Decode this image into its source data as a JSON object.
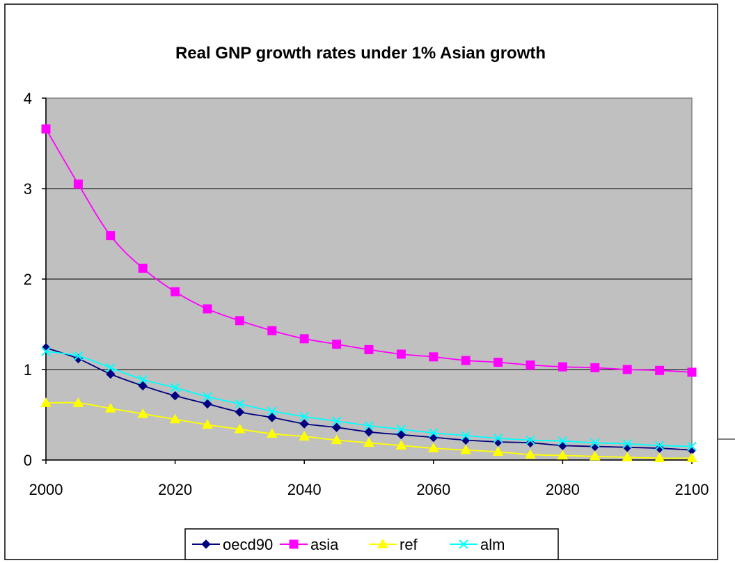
{
  "chart_data": {
    "type": "line",
    "title": "Real GNP growth rates under 1% Asian growth",
    "xlabel": "",
    "ylabel": "",
    "xlim": [
      2000,
      2100
    ],
    "ylim": [
      0,
      4
    ],
    "x_ticks": [
      2000,
      2020,
      2040,
      2060,
      2080,
      2100
    ],
    "y_ticks": [
      0,
      1,
      2,
      3,
      4
    ],
    "grid": "horizontal",
    "plot_background": "#c0c0c0",
    "legend_position": "bottom",
    "x": [
      2000,
      2005,
      2010,
      2015,
      2020,
      2025,
      2030,
      2035,
      2040,
      2045,
      2050,
      2055,
      2060,
      2065,
      2070,
      2075,
      2080,
      2085,
      2090,
      2095,
      2100
    ],
    "series": [
      {
        "name": "oecd90",
        "color": "#000080",
        "marker": "diamond",
        "values": [
          1.24,
          1.12,
          0.95,
          0.82,
          0.71,
          0.62,
          0.53,
          0.47,
          0.4,
          0.36,
          0.31,
          0.28,
          0.25,
          0.22,
          0.2,
          0.19,
          0.16,
          0.15,
          0.14,
          0.13,
          0.11
        ]
      },
      {
        "name": "asia",
        "color": "#ff00ff",
        "marker": "square",
        "values": [
          3.66,
          3.05,
          2.48,
          2.12,
          1.86,
          1.67,
          1.54,
          1.43,
          1.34,
          1.28,
          1.22,
          1.17,
          1.14,
          1.1,
          1.08,
          1.05,
          1.03,
          1.02,
          1.0,
          0.99,
          0.97
        ]
      },
      {
        "name": "ref",
        "color": "#ffff00",
        "marker": "triangle",
        "values": [
          0.63,
          0.63,
          0.57,
          0.51,
          0.45,
          0.39,
          0.34,
          0.29,
          0.26,
          0.22,
          0.19,
          0.16,
          0.13,
          0.11,
          0.09,
          0.06,
          0.05,
          0.04,
          0.03,
          0.02,
          0.02
        ]
      },
      {
        "name": "alm",
        "color": "#00ffff",
        "marker": "x",
        "values": [
          1.2,
          1.15,
          1.02,
          0.89,
          0.8,
          0.7,
          0.62,
          0.54,
          0.48,
          0.43,
          0.38,
          0.34,
          0.3,
          0.27,
          0.24,
          0.22,
          0.21,
          0.19,
          0.18,
          0.16,
          0.15
        ]
      }
    ]
  }
}
